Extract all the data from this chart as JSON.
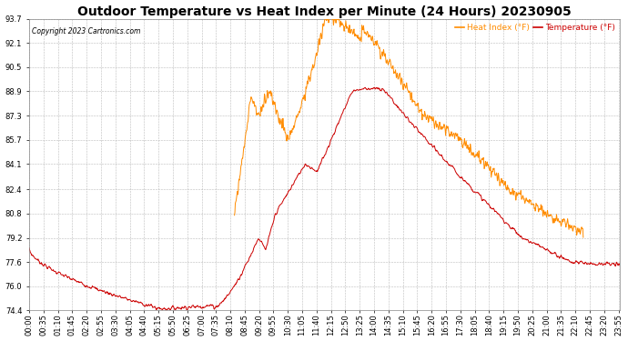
{
  "title": "Outdoor Temperature vs Heat Index per Minute (24 Hours) 20230905",
  "copyright": "Copyright 2023 Cartronics.com",
  "legend_heat": "Heat Index (°F)",
  "legend_temp": "Temperature (°F)",
  "heat_index_color": "#FF8C00",
  "temp_color": "#CC0000",
  "background_color": "#ffffff",
  "grid_color": "#bbbbbb",
  "yticks": [
    74.4,
    76.0,
    77.6,
    79.2,
    80.8,
    82.4,
    84.1,
    85.7,
    87.3,
    88.9,
    90.5,
    92.1,
    93.7
  ],
  "ylim": [
    74.4,
    93.7
  ],
  "title_fontsize": 10,
  "tick_fontsize": 6.0,
  "figsize": [
    6.9,
    3.75
  ],
  "dpi": 100
}
